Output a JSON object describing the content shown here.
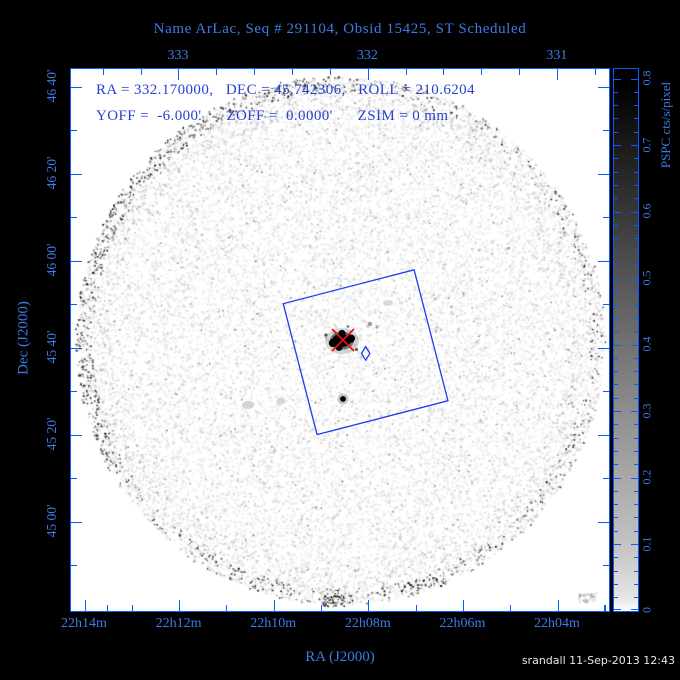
{
  "title": "Name ArLac, Seq # 291104, Obsid 15425, ST Scheduled",
  "header": {
    "line1": "RA = 332.170000,   DEC = 45.742306,   ROLL = 210.6204",
    "line2": "YOFF =  -6.000'      ZOFF =  0.0000'      ZSIM = 0 mm"
  },
  "axes": {
    "top": {
      "labels": [
        "333",
        "332",
        "331"
      ]
    },
    "bottom": {
      "labels": [
        "22h14m",
        "22h12m",
        "22h10m",
        "22h08m",
        "22h06m",
        "22h04m"
      ],
      "title": "RA (J2000)"
    },
    "left": {
      "labels": [
        "46 40'",
        "46 20'",
        "46 00'",
        "45 40'",
        "45 20'",
        "45 00'"
      ],
      "title": "Dec (J2000)"
    }
  },
  "colorbar": {
    "labels": [
      "0.8",
      "0.7",
      "0.6",
      "0.5",
      "0.4",
      "0.3",
      "0.2",
      "0.1",
      "0"
    ],
    "title": "PSPC cts/s/pixel",
    "min": 0,
    "max": 0.8
  },
  "credit": "srandall 11-Sep-2013 12:43",
  "colors": {
    "background": "#000000",
    "frame_blue": "#0a5cff",
    "label_blue": "#3d7be6",
    "header_blue": "#2840d0",
    "marker_blue": "#1a3cf0",
    "target_red": "#e81010",
    "field_white": "#ffffff"
  },
  "chart_data": {
    "type": "heatmap",
    "title": "Name ArLac, Seq # 291104, Obsid 15425, ST Scheduled",
    "xlabel": "RA (J2000)",
    "ylabel": "Dec (J2000)",
    "x_ticks": [
      "22h14m",
      "22h12m",
      "22h10m",
      "22h08m",
      "22h06m",
      "22h04m"
    ],
    "x_ticks_deg": [
      333.5,
      333.0,
      332.5,
      332.0,
      331.5,
      331.0
    ],
    "top_axis_ticks_deg": [
      333,
      332,
      331
    ],
    "y_ticks": [
      "46 40'",
      "46 20'",
      "46 00'",
      "45 40'",
      "45 20'",
      "45 00'"
    ],
    "y_ticks_deg": [
      46.667,
      46.333,
      46.0,
      45.667,
      45.333,
      45.0
    ],
    "colorbar": {
      "label": "PSPC cts/s/pixel",
      "range": [
        0,
        0.8
      ]
    },
    "image_description": "ROSAT PSPC grayscale counts image: circular field of view of sparse noise speckles on white, dark speckled rim at the field edge",
    "field_center": {
      "ra_deg": 332.3,
      "dec_deg": 45.83,
      "radius_deg": 1.0
    },
    "pointing": {
      "ra_deg": 332.17,
      "dec_deg": 45.742306,
      "roll_deg": 210.6204,
      "yoff_arcmin": -6.0,
      "zoff_arcmin": 0.0,
      "zsim_mm": 0
    },
    "annotations": [
      {
        "type": "target-cross",
        "label": "ArLac",
        "color": "red",
        "ra_deg": 332.17,
        "dec_deg": 45.742,
        "note": "red X over bright black source blob"
      },
      {
        "type": "fov-square",
        "label": "detector field of view",
        "color": "blue",
        "center_ra_deg": 332.02,
        "center_dec_deg": 45.65,
        "side_deg": 0.7,
        "rotation_deg": 14.5
      },
      {
        "type": "aimpoint-diamond",
        "color": "blue",
        "ra_deg": 332.02,
        "dec_deg": 45.65
      },
      {
        "type": "point-source",
        "color": "black",
        "ra_deg": 332.14,
        "dec_deg": 45.47
      }
    ]
  }
}
